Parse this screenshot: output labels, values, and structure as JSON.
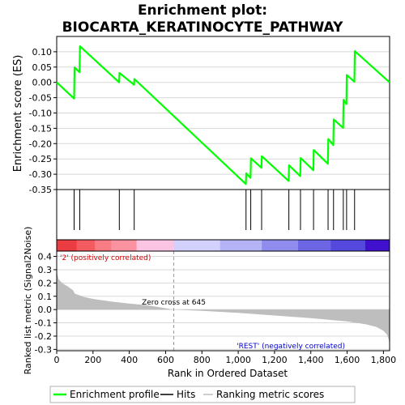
{
  "chart_data": {
    "type": "line",
    "title_line1": "Enrichment plot:",
    "title_line2": "BIOCARTA_KERATINOCYTE_PATHWAY",
    "es_panel": {
      "ylabel": "Enrichment score (ES)",
      "ylim": [
        -0.35,
        0.15
      ],
      "yticks": [
        -0.35,
        -0.3,
        -0.25,
        -0.2,
        -0.15,
        -0.1,
        -0.05,
        0.0,
        0.05,
        0.1
      ],
      "ytick_labels": [
        "-0.35",
        "-0.30",
        "-0.25",
        "-0.20",
        "-0.15",
        "-0.10",
        "-0.05",
        "0.00",
        "0.05",
        "0.10"
      ],
      "line_color": "#00ff00",
      "points": [
        [
          0,
          0.0
        ],
        [
          96,
          -0.053
        ],
        [
          98,
          0.049
        ],
        [
          126,
          0.033
        ],
        [
          128,
          0.118
        ],
        [
          344,
          0.0
        ],
        [
          346,
          0.031
        ],
        [
          426,
          -0.008
        ],
        [
          428,
          0.011
        ],
        [
          1042,
          -0.332
        ],
        [
          1044,
          -0.297
        ],
        [
          1068,
          -0.312
        ],
        [
          1070,
          -0.248
        ],
        [
          1128,
          -0.279
        ],
        [
          1130,
          -0.241
        ],
        [
          1278,
          -0.322
        ],
        [
          1280,
          -0.271
        ],
        [
          1342,
          -0.306
        ],
        [
          1344,
          -0.247
        ],
        [
          1414,
          -0.287
        ],
        [
          1416,
          -0.221
        ],
        [
          1494,
          -0.266
        ],
        [
          1496,
          -0.185
        ],
        [
          1524,
          -0.205
        ],
        [
          1526,
          -0.121
        ],
        [
          1578,
          -0.149
        ],
        [
          1580,
          -0.057
        ],
        [
          1596,
          -0.071
        ],
        [
          1598,
          0.024
        ],
        [
          1640,
          0.002
        ],
        [
          1642,
          0.102
        ],
        [
          1834,
          0.0
        ]
      ]
    },
    "hits": [
      96,
      127,
      345,
      427,
      1043,
      1069,
      1129,
      1279,
      1343,
      1415,
      1495,
      1525,
      1579,
      1597,
      1641
    ],
    "color_bar": {
      "segments": [
        {
          "start": 0,
          "end": 110,
          "color": "#ea3c41"
        },
        {
          "start": 110,
          "end": 210,
          "color": "#f45b61"
        },
        {
          "start": 210,
          "end": 300,
          "color": "#f97c84"
        },
        {
          "start": 300,
          "end": 440,
          "color": "#fb92a0"
        },
        {
          "start": 440,
          "end": 645,
          "color": "#fcc4e3"
        },
        {
          "start": 645,
          "end": 900,
          "color": "#d2d1fb"
        },
        {
          "start": 900,
          "end": 1130,
          "color": "#b4b3f6"
        },
        {
          "start": 1130,
          "end": 1330,
          "color": "#8f8ced"
        },
        {
          "start": 1330,
          "end": 1510,
          "color": "#6c66e4"
        },
        {
          "start": 1510,
          "end": 1700,
          "color": "#5548dd"
        },
        {
          "start": 1700,
          "end": 1834,
          "color": "#4010ce"
        }
      ]
    },
    "metric_panel": {
      "ylabel": "Ranked list metric (Signal2Noise)",
      "ylim": [
        -0.31,
        0.44
      ],
      "yticks": [
        -0.3,
        -0.2,
        -0.1,
        0.0,
        0.1,
        0.2,
        0.3,
        0.4
      ],
      "ytick_labels": [
        "-0.3",
        "-0.2",
        "-0.1",
        "0.0",
        "0.1",
        "0.2",
        "0.3",
        "0.4"
      ],
      "fill_color": "#bebebe",
      "metric": [
        [
          0,
          0.29
        ],
        [
          10,
          0.23
        ],
        [
          30,
          0.2
        ],
        [
          60,
          0.175
        ],
        [
          90,
          0.145
        ],
        [
          100,
          0.12
        ],
        [
          150,
          0.095
        ],
        [
          200,
          0.08
        ],
        [
          300,
          0.06
        ],
        [
          400,
          0.045
        ],
        [
          500,
          0.032
        ],
        [
          645,
          0.0
        ],
        [
          800,
          -0.01
        ],
        [
          1000,
          -0.025
        ],
        [
          1200,
          -0.045
        ],
        [
          1400,
          -0.065
        ],
        [
          1600,
          -0.09
        ],
        [
          1700,
          -0.11
        ],
        [
          1760,
          -0.13
        ],
        [
          1800,
          -0.16
        ],
        [
          1820,
          -0.19
        ],
        [
          1830,
          -0.23
        ],
        [
          1834,
          -0.28
        ]
      ],
      "zero_cross": 645,
      "zero_cross_label": "Zero cross at 645",
      "pos_label": "'2' (positively correlated)",
      "neg_label": "'REST' (negatively correlated)"
    },
    "xaxis": {
      "label": "Rank in Ordered Dataset",
      "xlim": [
        0,
        1834
      ],
      "ticks": [
        0,
        200,
        400,
        600,
        800,
        1000,
        1200,
        1400,
        1600,
        1800
      ],
      "tick_labels": [
        "0",
        "200",
        "400",
        "600",
        "800",
        "1,000",
        "1,200",
        "1,400",
        "1,600",
        "1,800"
      ]
    },
    "legend": {
      "placement": "bottom",
      "items": [
        {
          "label": "Enrichment profile",
          "color": "#00ff00"
        },
        {
          "label": "Hits",
          "color": "#000000"
        },
        {
          "label": "Ranking metric scores",
          "color": "#bebebe"
        }
      ]
    }
  }
}
